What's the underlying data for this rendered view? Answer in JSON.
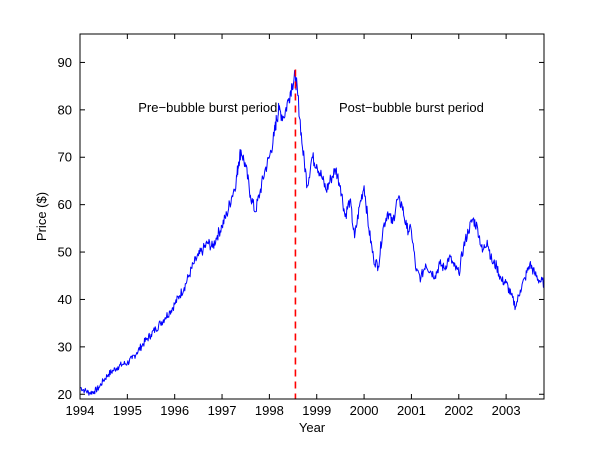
{
  "chart_data": {
    "type": "line",
    "xlabel": "Year",
    "ylabel": "Price ($)",
    "xlim": [
      1994.0,
      2003.8
    ],
    "ylim": [
      19,
      96
    ],
    "x_ticks": [
      1994,
      1995,
      1996,
      1997,
      1998,
      1999,
      2000,
      2001,
      2002,
      2003
    ],
    "y_ticks": [
      20,
      30,
      40,
      50,
      60,
      70,
      80,
      90
    ],
    "grid": false,
    "box": true,
    "series": [
      {
        "color": "#0000ff",
        "x": [
          1994.0,
          1994.1,
          1994.2,
          1994.3,
          1994.4,
          1994.5,
          1994.6,
          1994.7,
          1994.8,
          1994.9,
          1995.0,
          1995.1,
          1995.2,
          1995.3,
          1995.4,
          1995.5,
          1995.6,
          1995.7,
          1995.8,
          1995.9,
          1996.0,
          1996.1,
          1996.2,
          1996.3,
          1996.4,
          1996.5,
          1996.6,
          1996.7,
          1996.8,
          1996.9,
          1997.0,
          1997.1,
          1997.2,
          1997.3,
          1997.35,
          1997.4,
          1997.5,
          1997.6,
          1997.7,
          1997.8,
          1997.9,
          1998.0,
          1998.1,
          1998.15,
          1998.2,
          1998.3,
          1998.4,
          1998.48,
          1998.55,
          1998.6,
          1998.7,
          1998.8,
          1998.9,
          1999.0,
          1999.1,
          1999.2,
          1999.3,
          1999.4,
          1999.5,
          1999.6,
          1999.7,
          1999.8,
          1999.9,
          2000.0,
          2000.1,
          2000.2,
          2000.3,
          2000.4,
          2000.5,
          2000.6,
          2000.7,
          2000.8,
          2000.9,
          2001.0,
          2001.1,
          2001.2,
          2001.3,
          2001.4,
          2001.5,
          2001.6,
          2001.7,
          2001.8,
          2001.9,
          2002.0,
          2002.1,
          2002.2,
          2002.3,
          2002.4,
          2002.5,
          2002.6,
          2002.7,
          2002.8,
          2002.9,
          2003.0,
          2003.1,
          2003.2,
          2003.3,
          2003.4,
          2003.5,
          2003.6,
          2003.7,
          2003.8
        ],
        "y": [
          21.5,
          20.8,
          20.3,
          20.6,
          21.4,
          23.0,
          24.2,
          25.0,
          25.8,
          26.3,
          26.6,
          27.5,
          28.8,
          30.2,
          31.5,
          32.6,
          33.8,
          35.0,
          36.2,
          37.5,
          39.0,
          40.8,
          42.5,
          45.0,
          47.5,
          49.2,
          50.5,
          52.0,
          51.0,
          53.5,
          55.5,
          58.0,
          61.5,
          65.0,
          69.0,
          71.5,
          68.0,
          62.0,
          58.5,
          62.5,
          67.0,
          70.0,
          74.5,
          78.0,
          80.0,
          78.5,
          82.0,
          85.5,
          87.0,
          83.0,
          72.0,
          64.0,
          70.0,
          68.5,
          66.0,
          63.0,
          65.5,
          67.5,
          64.0,
          57.5,
          61.0,
          53.0,
          59.5,
          64.0,
          55.0,
          48.5,
          47.0,
          55.0,
          58.5,
          56.0,
          61.0,
          60.0,
          55.0,
          54.5,
          46.0,
          44.5,
          47.5,
          46.0,
          45.0,
          47.5,
          46.5,
          49.0,
          47.0,
          45.5,
          51.0,
          54.5,
          57.0,
          55.0,
          50.0,
          52.5,
          48.0,
          47.0,
          44.0,
          43.5,
          41.0,
          38.5,
          42.0,
          44.5,
          47.5,
          45.5,
          44.0,
          43.5
        ]
      }
    ],
    "reference_lines": [
      {
        "x": 1998.55,
        "style": "dashed",
        "color": "#ff0000"
      }
    ],
    "annotations": [
      {
        "text": "Pre−bubble burst period",
        "x": 1996.7,
        "y": 79.5
      },
      {
        "text": "Post−bubble burst period",
        "x": 2001.0,
        "y": 79.5
      }
    ]
  }
}
